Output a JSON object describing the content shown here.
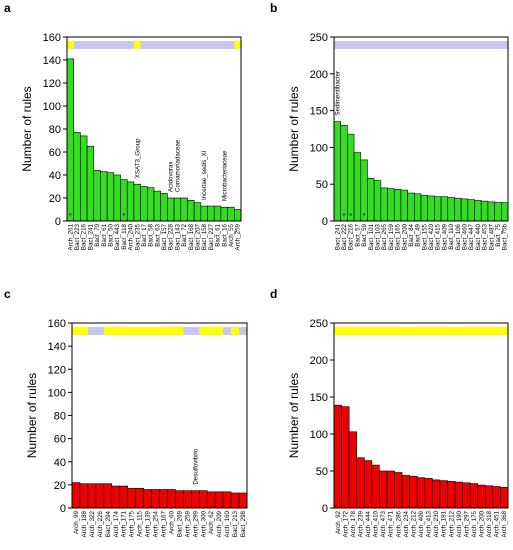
{
  "chart_data": [
    {
      "panel": "a",
      "type": "bar",
      "ylabel": "Number of rules",
      "ylim": [
        0,
        160
      ],
      "yticks": [
        0,
        20,
        40,
        60,
        80,
        100,
        120,
        140,
        160
      ],
      "bar_color": "#33dd22",
      "categories": [
        "Arch_261",
        "Bact_223",
        "Bact_216",
        "Bact_241",
        "Bact_70",
        "Bact_61",
        "Bact_50",
        "Bact_443",
        "Bact_118",
        "Arch_240",
        "Bact_235",
        "Bact_17",
        "Bact_58",
        "Bact_63",
        "Bact_157",
        "Bact_228",
        "Bact_143",
        "Bact_72",
        "Bact_168",
        "Bact_207",
        "Bact_158",
        "Bact_227",
        "Bact_61",
        "Bact_16",
        "Arch_55",
        "Arch_259"
      ],
      "values": [
        141,
        77,
        74,
        65,
        44,
        43,
        42,
        40,
        36,
        34,
        32,
        30,
        29,
        26,
        24,
        20,
        20,
        20,
        18,
        16,
        13,
        13,
        13,
        12,
        12,
        10
      ],
      "top_strip": [
        "yellow",
        "lavender",
        "lavender",
        "lavender",
        "lavender",
        "lavender",
        "lavender",
        "lavender",
        "lavender",
        "lavender",
        "yellow",
        "lavender",
        "lavender",
        "lavender",
        "lavender",
        "lavender",
        "lavender",
        "lavender",
        "lavender",
        "lavender",
        "lavender",
        "lavender",
        "lavender",
        "lavender",
        "lavender",
        "yellow"
      ],
      "strip_colors": {
        "yellow": "#ffff00",
        "lavender": "#c6c6f0"
      },
      "star_bars": [
        0,
        8
      ],
      "annotations": [
        {
          "bar": 10,
          "text": "XSAT3_Group"
        },
        {
          "bar": 15,
          "text": "Acidovorax"
        },
        {
          "bar": 16,
          "text": "Comamonadaceae"
        },
        {
          "bar": 20,
          "text": "Incertae_sedis_XI"
        },
        {
          "bar": 23,
          "text": "Microbacteriaceae"
        }
      ]
    },
    {
      "panel": "b",
      "type": "bar",
      "ylabel": "Number of rules",
      "ylim": [
        0,
        250
      ],
      "yticks": [
        0,
        50,
        100,
        150,
        200,
        250
      ],
      "bar_color": "#33dd22",
      "categories": [
        "Bact_241",
        "Bact_222",
        "Bact_216",
        "Bact_57",
        "Bact_59",
        "Bact_101",
        "Bact_103",
        "Bact_265",
        "Bact_159",
        "Bact_165",
        "Bact_200",
        "Bact_84",
        "Bact_49",
        "Bact_155",
        "Bact_420",
        "Bact_415",
        "Bact_409",
        "Bact_110",
        "Bact_106",
        "Bact_460",
        "Bact_447",
        "Bact_440",
        "Bact_453",
        "Bact_487",
        "Bact_75",
        "Bact_75b"
      ],
      "values": [
        135,
        130,
        118,
        93,
        83,
        58,
        55,
        45,
        44,
        43,
        42,
        38,
        37,
        35,
        34,
        33,
        33,
        32,
        31,
        30,
        29,
        28,
        27,
        26,
        25,
        25
      ],
      "top_strip": [
        "lavender",
        "lavender",
        "lavender",
        "lavender",
        "lavender",
        "lavender",
        "lavender",
        "lavender",
        "lavender",
        "lavender",
        "lavender",
        "lavender",
        "lavender",
        "lavender",
        "lavender",
        "lavender",
        "lavender",
        "lavender",
        "lavender",
        "lavender",
        "lavender",
        "lavender",
        "lavender",
        "lavender",
        "lavender",
        "lavender"
      ],
      "strip_colors": {
        "yellow": "#ffff00",
        "lavender": "#c6c6f0"
      },
      "star_bars": [
        1,
        2,
        4
      ],
      "annotations": [
        {
          "bar": 0,
          "text": "Sedimentibacter"
        }
      ]
    },
    {
      "panel": "c",
      "type": "bar",
      "ylabel": "Number of rules",
      "ylim": [
        0,
        160
      ],
      "yticks": [
        0,
        20,
        40,
        60,
        80,
        100,
        120,
        140,
        160
      ],
      "bar_color": "#ee0000",
      "categories": [
        "Arch_99",
        "Arch_188",
        "Arch_322",
        "Arch_226",
        "Bact_294",
        "Arch_174",
        "Arch_171",
        "Arch_175",
        "Arch_115",
        "Arch_139",
        "Arch_254",
        "Arch_167",
        "Arch_60",
        "Bact_269",
        "Arch_259",
        "Arch_299",
        "Arch_300",
        "Arch_62",
        "Arch_209",
        "Arch_160",
        "Bact_213",
        "Bact_298"
      ],
      "values": [
        22,
        21,
        21,
        21,
        21,
        19,
        19,
        17,
        17,
        16,
        16,
        16,
        16,
        15,
        15,
        15,
        15,
        14,
        14,
        14,
        13,
        13
      ],
      "top_strip": [
        "yellow",
        "yellow",
        "lavender",
        "lavender",
        "yellow",
        "yellow",
        "yellow",
        "yellow",
        "yellow",
        "yellow",
        "yellow",
        "yellow",
        "yellow",
        "yellow",
        "lavender",
        "lavender",
        "yellow",
        "yellow",
        "yellow",
        "lavender",
        "yellow",
        "lavender"
      ],
      "strip_colors": {
        "yellow": "#ffff00",
        "lavender": "#c6c6f0"
      },
      "star_bars": [],
      "annotations": [
        {
          "bar": 15,
          "text": "Desulfovibrio"
        }
      ]
    },
    {
      "panel": "d",
      "type": "bar",
      "ylabel": "Number of rules",
      "ylim": [
        0,
        250
      ],
      "yticks": [
        0,
        50,
        100,
        150,
        200,
        250
      ],
      "bar_color": "#ee0000",
      "categories": [
        "Arch_92",
        "Arch_172",
        "Arch_178",
        "Arch_239",
        "Arch_444",
        "Arch_410",
        "Arch_473",
        "Arch_471",
        "Arch_286",
        "Arch_234",
        "Arch_212",
        "Arch_409",
        "Arch_413",
        "Arch_230",
        "Arch_191",
        "Arch_212",
        "Arch_190",
        "Arch_297",
        "Arch_175",
        "Arch_200",
        "Arch_318",
        "Arch_451",
        "Arch_368"
      ],
      "values": [
        139,
        137,
        103,
        68,
        64,
        58,
        50,
        50,
        48,
        44,
        43,
        41,
        40,
        38,
        37,
        36,
        35,
        34,
        33,
        31,
        30,
        29,
        28
      ],
      "top_strip": [
        "yellow",
        "yellow",
        "yellow",
        "yellow",
        "yellow",
        "yellow",
        "yellow",
        "yellow",
        "yellow",
        "yellow",
        "yellow",
        "yellow",
        "yellow",
        "yellow",
        "yellow",
        "yellow",
        "yellow",
        "yellow",
        "yellow",
        "yellow",
        "yellow",
        "yellow",
        "yellow"
      ],
      "strip_colors": {
        "yellow": "#ffff00",
        "lavender": "#c6c6f0"
      },
      "star_bars": [],
      "annotations": []
    }
  ]
}
